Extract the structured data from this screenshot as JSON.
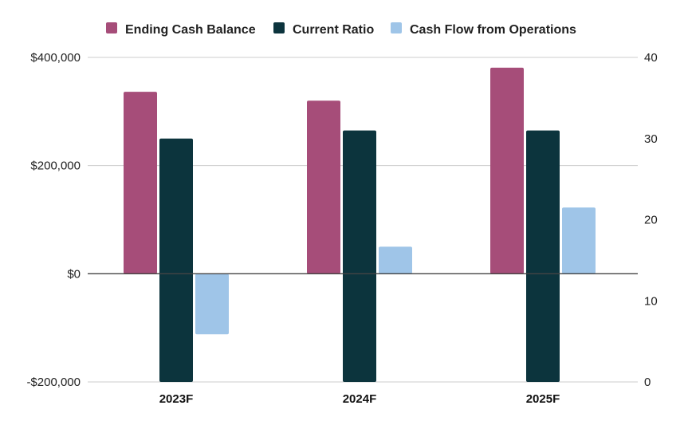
{
  "chart_data": {
    "type": "bar",
    "title": "",
    "xlabel": "",
    "ylabel": "",
    "y2label": "",
    "categories": [
      "2023F",
      "2024F",
      "2025F"
    ],
    "series": [
      {
        "name": "Ending Cash Balance",
        "axis": "left",
        "color": "#a64d79",
        "values": [
          336500,
          320000,
          381000
        ]
      },
      {
        "name": "Current Ratio",
        "axis": "right",
        "color": "#0c343d",
        "values": [
          30,
          31,
          31
        ]
      },
      {
        "name": "Cash Flow from Operations",
        "axis": "left",
        "color": "#9fc5e8",
        "values": [
          -112000,
          50000,
          122500
        ]
      }
    ],
    "ylim": [
      -200000,
      400000
    ],
    "y2lim": [
      0,
      40
    ],
    "yticks": [
      {
        "value": 400000,
        "label": "$400,000"
      },
      {
        "value": 200000,
        "label": "$200,000"
      },
      {
        "value": 0,
        "label": "$0"
      },
      {
        "value": -200000,
        "label": "-$200,000"
      }
    ],
    "y2ticks": [
      {
        "value": 40,
        "label": "40"
      },
      {
        "value": 30,
        "label": "30"
      },
      {
        "value": 20,
        "label": "20"
      },
      {
        "value": 10,
        "label": "10"
      },
      {
        "value": 0,
        "label": "0"
      }
    ],
    "grid": true,
    "legend_position": "top-center"
  }
}
